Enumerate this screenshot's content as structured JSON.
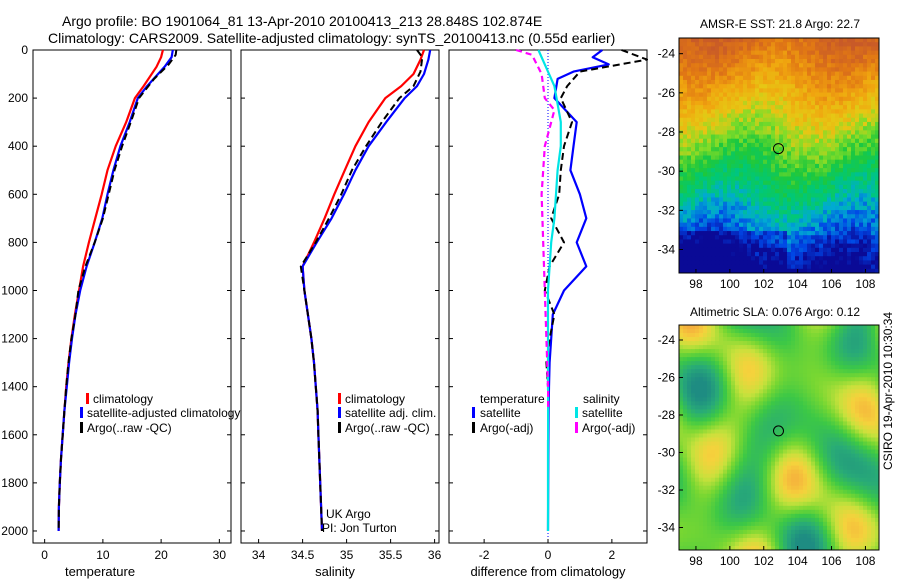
{
  "header": {
    "line1": "Argo profile: BO 1901064_81 13-Apr-2010 20100413_213 28.848S 102.874E",
    "line2": "Climatology: CARS2009. Satellite-adjusted climatology: synTS_20100413.nc (0.55d earlier)"
  },
  "side_label": "CSIRO 19-Apr-2010 10:30:34",
  "colors": {
    "climatology": "#ff0000",
    "satellite": "#0000ff",
    "argo": "#000000",
    "cyan": "#00e5e5",
    "magenta": "#ff00ff"
  },
  "chart_data": [
    {
      "id": "temperature",
      "type": "line",
      "xlabel": "temperature",
      "xlim": [
        -2,
        32
      ],
      "ylim": [
        0,
        2050
      ],
      "y_inverted": true,
      "xticks": [
        "0",
        "10",
        "20",
        "30"
      ],
      "yticks": [
        "0",
        "200",
        "400",
        "600",
        "800",
        "1000",
        "1200",
        "1400",
        "1600",
        "1800",
        "2000"
      ],
      "legend": [
        "climatology",
        "satellite-adjusted climatology",
        "Argo(..raw -QC)"
      ],
      "series": [
        {
          "name": "climatology",
          "color": "#ff0000",
          "width": 2.2,
          "points": [
            [
              20.3,
              0
            ],
            [
              20.0,
              30
            ],
            [
              19.2,
              70
            ],
            [
              17.0,
              150
            ],
            [
              15.5,
              200
            ],
            [
              14.0,
              300
            ],
            [
              12.2,
              400
            ],
            [
              10.8,
              500
            ],
            [
              9.8,
              600
            ],
            [
              8.7,
              700
            ],
            [
              7.6,
              800
            ],
            [
              6.6,
              900
            ],
            [
              5.9,
              1000
            ],
            [
              5.2,
              1100
            ],
            [
              4.6,
              1200
            ],
            [
              4.1,
              1300
            ],
            [
              3.7,
              1400
            ],
            [
              3.4,
              1500
            ],
            [
              3.1,
              1600
            ],
            [
              2.8,
              1700
            ],
            [
              2.6,
              1800
            ],
            [
              2.45,
              1900
            ],
            [
              2.4,
              2000
            ]
          ]
        },
        {
          "name": "satellite-adjusted climatology",
          "color": "#0000ff",
          "width": 2.2,
          "points": [
            [
              22.0,
              0
            ],
            [
              21.8,
              30
            ],
            [
              20.6,
              70
            ],
            [
              17.6,
              150
            ],
            [
              16.0,
              200
            ],
            [
              14.6,
              300
            ],
            [
              13.0,
              400
            ],
            [
              11.8,
              500
            ],
            [
              10.8,
              600
            ],
            [
              9.9,
              700
            ],
            [
              8.6,
              800
            ],
            [
              7.2,
              900
            ],
            [
              6.1,
              1000
            ],
            [
              5.3,
              1100
            ],
            [
              4.7,
              1200
            ],
            [
              4.2,
              1300
            ],
            [
              3.8,
              1400
            ],
            [
              3.4,
              1500
            ],
            [
              3.1,
              1600
            ],
            [
              2.8,
              1700
            ],
            [
              2.6,
              1800
            ],
            [
              2.45,
              1900
            ],
            [
              2.4,
              2000
            ]
          ]
        },
        {
          "name": "Argo(..raw -QC)",
          "color": "#000000",
          "width": 2.0,
          "dash": "7 4",
          "points": [
            [
              22.6,
              0
            ],
            [
              22.5,
              20
            ],
            [
              21.3,
              60
            ],
            [
              18.8,
              120
            ],
            [
              16.2,
              200
            ],
            [
              14.8,
              300
            ],
            [
              13.3,
              400
            ],
            [
              12.0,
              500
            ],
            [
              11.0,
              600
            ],
            [
              10.0,
              700
            ],
            [
              8.6,
              800
            ],
            [
              7.0,
              900
            ],
            [
              5.8,
              1000
            ],
            [
              5.3,
              1100
            ],
            [
              4.6,
              1200
            ],
            [
              4.1,
              1300
            ],
            [
              3.7,
              1400
            ],
            [
              3.4,
              1500
            ],
            [
              3.1,
              1600
            ],
            [
              2.8,
              1700
            ],
            [
              2.6,
              1800
            ],
            [
              2.45,
              1900
            ],
            [
              2.4,
              2000
            ]
          ]
        }
      ]
    },
    {
      "id": "salinity",
      "type": "line",
      "xlabel": "salinity",
      "xlim": [
        33.8,
        36.05
      ],
      "ylim": [
        0,
        2050
      ],
      "y_inverted": true,
      "xticks": [
        "34",
        "34.5",
        "35",
        "35.5",
        "36"
      ],
      "legend": [
        "climatology",
        "satellite adj. clim.",
        "Argo(..raw -QC)"
      ],
      "annotation": [
        "UK Argo",
        "PI: Jon Turton"
      ],
      "series": [
        {
          "name": "climatology",
          "color": "#ff0000",
          "width": 2.2,
          "points": [
            [
              35.88,
              0
            ],
            [
              35.84,
              40
            ],
            [
              35.76,
              100
            ],
            [
              35.62,
              150
            ],
            [
              35.44,
              200
            ],
            [
              35.25,
              300
            ],
            [
              35.1,
              400
            ],
            [
              34.98,
              500
            ],
            [
              34.86,
              600
            ],
            [
              34.75,
              700
            ],
            [
              34.63,
              800
            ],
            [
              34.5,
              900
            ],
            [
              34.52,
              1000
            ],
            [
              34.56,
              1100
            ],
            [
              34.6,
              1200
            ],
            [
              34.63,
              1300
            ],
            [
              34.65,
              1400
            ],
            [
              34.67,
              1500
            ],
            [
              34.68,
              1600
            ],
            [
              34.69,
              1700
            ],
            [
              34.7,
              1800
            ],
            [
              34.71,
              1900
            ],
            [
              34.72,
              2000
            ]
          ]
        },
        {
          "name": "satellite adj. clim.",
          "color": "#0000ff",
          "width": 2.2,
          "points": [
            [
              35.95,
              0
            ],
            [
              35.93,
              40
            ],
            [
              35.88,
              100
            ],
            [
              35.8,
              150
            ],
            [
              35.66,
              200
            ],
            [
              35.45,
              300
            ],
            [
              35.25,
              400
            ],
            [
              35.1,
              500
            ],
            [
              34.97,
              600
            ],
            [
              34.83,
              700
            ],
            [
              34.66,
              800
            ],
            [
              34.5,
              900
            ],
            [
              34.52,
              1000
            ],
            [
              34.56,
              1100
            ],
            [
              34.6,
              1200
            ],
            [
              34.63,
              1300
            ],
            [
              34.65,
              1400
            ],
            [
              34.67,
              1500
            ],
            [
              34.68,
              1600
            ],
            [
              34.69,
              1700
            ],
            [
              34.7,
              1800
            ],
            [
              34.71,
              1900
            ],
            [
              34.72,
              2000
            ]
          ]
        },
        {
          "name": "Argo(..raw -QC)",
          "color": "#000000",
          "width": 2.0,
          "dash": "7 4",
          "points": [
            [
              35.8,
              0
            ],
            [
              35.86,
              30
            ],
            [
              35.84,
              90
            ],
            [
              35.76,
              150
            ],
            [
              35.6,
              200
            ],
            [
              35.4,
              300
            ],
            [
              35.22,
              400
            ],
            [
              35.06,
              500
            ],
            [
              34.94,
              600
            ],
            [
              34.8,
              700
            ],
            [
              34.65,
              800
            ],
            [
              34.48,
              900
            ],
            [
              34.52,
              1000
            ],
            [
              34.56,
              1100
            ],
            [
              34.6,
              1200
            ],
            [
              34.63,
              1300
            ],
            [
              34.65,
              1400
            ],
            [
              34.67,
              1500
            ],
            [
              34.68,
              1600
            ],
            [
              34.69,
              1700
            ],
            [
              34.7,
              1800
            ],
            [
              34.71,
              1900
            ],
            [
              34.72,
              2000
            ]
          ]
        }
      ]
    },
    {
      "id": "difference",
      "type": "line",
      "xlabel": "difference from climatology",
      "xlim": [
        -3.1,
        3.1
      ],
      "ylim": [
        0,
        2050
      ],
      "y_inverted": true,
      "xticks": [
        "-2",
        "0",
        "2"
      ],
      "legend_temperature_title": "temperature",
      "legend_salinity_title": "salinity",
      "legend": [
        "satellite",
        "Argo(-adj)",
        "satellite",
        "Argo(-adj)"
      ],
      "series": [
        {
          "name": "temperature satellite",
          "color": "#0000ff",
          "width": 2.2,
          "points": [
            [
              1.7,
              0
            ],
            [
              1.4,
              30
            ],
            [
              1.9,
              60
            ],
            [
              0.8,
              90
            ],
            [
              0.3,
              120
            ],
            [
              0.2,
              200
            ],
            [
              0.9,
              300
            ],
            [
              0.8,
              400
            ],
            [
              0.7,
              500
            ],
            [
              1.0,
              600
            ],
            [
              1.2,
              700
            ],
            [
              0.9,
              800
            ],
            [
              1.2,
              900
            ],
            [
              0.5,
              1000
            ],
            [
              0.15,
              1100
            ],
            [
              0.1,
              1200
            ],
            [
              0.05,
              1300
            ],
            [
              0.03,
              1400
            ],
            [
              0.02,
              1500
            ],
            [
              0.01,
              1700
            ],
            [
              0.0,
              2000
            ]
          ]
        },
        {
          "name": "temperature Argo(-adj)",
          "color": "#000000",
          "width": 2.0,
          "dash": "7 4",
          "points": [
            [
              2.3,
              0
            ],
            [
              3.1,
              40
            ],
            [
              1.0,
              90
            ],
            [
              0.6,
              150
            ],
            [
              0.4,
              200
            ],
            [
              0.75,
              300
            ],
            [
              0.5,
              400
            ],
            [
              0.4,
              500
            ],
            [
              0.35,
              600
            ],
            [
              0.1,
              700
            ],
            [
              0.5,
              800
            ],
            [
              0.05,
              900
            ],
            [
              -0.1,
              1000
            ],
            [
              0.2,
              1100
            ],
            [
              0.05,
              1200
            ],
            [
              -0.05,
              1300
            ],
            [
              0.0,
              1400
            ],
            [
              0.0,
              2000
            ]
          ]
        },
        {
          "name": "salinity satellite",
          "color": "#00e5e5",
          "width": 2.2,
          "points": [
            [
              -0.3,
              0
            ],
            [
              -0.1,
              60
            ],
            [
              0.2,
              150
            ],
            [
              0.4,
              300
            ],
            [
              0.4,
              400
            ],
            [
              0.3,
              500
            ],
            [
              0.25,
              600
            ],
            [
              0.2,
              700
            ],
            [
              0.1,
              800
            ],
            [
              0.05,
              900
            ],
            [
              0.0,
              1000
            ],
            [
              0.0,
              2000
            ]
          ]
        },
        {
          "name": "salinity Argo(-adj)",
          "color": "#ff00ff",
          "width": 2.2,
          "dash": "6 4",
          "points": [
            [
              -1.0,
              0
            ],
            [
              -0.5,
              20
            ],
            [
              -0.2,
              100
            ],
            [
              -0.1,
              200
            ],
            [
              0.2,
              250
            ],
            [
              -0.1,
              400
            ],
            [
              -0.2,
              600
            ],
            [
              -0.15,
              800
            ],
            [
              -0.1,
              1000
            ],
            [
              -0.05,
              1200
            ],
            [
              0.0,
              1400
            ],
            [
              0.0,
              1500
            ]
          ]
        }
      ]
    },
    {
      "id": "sst_map",
      "type": "heatmap",
      "title": "AMSR-E SST: 21.8  Argo: 22.7",
      "xticks": [
        "98",
        "100",
        "102",
        "104",
        "106",
        "108"
      ],
      "yticks": [
        "-24",
        "-26",
        "-28",
        "-30",
        "-32",
        "-34"
      ],
      "xlim": [
        97,
        108.8
      ],
      "ylim": [
        -35.2,
        -23.2
      ],
      "marker": [
        102.87,
        -28.85
      ]
    },
    {
      "id": "sla_map",
      "type": "heatmap",
      "title": "Altimetric SLA: 0.076  Argo: 0.12",
      "xticks": [
        "98",
        "100",
        "102",
        "104",
        "106",
        "108"
      ],
      "yticks": [
        "-24",
        "-26",
        "-28",
        "-30",
        "-32",
        "-34"
      ],
      "xlim": [
        97,
        108.8
      ],
      "ylim": [
        -35.2,
        -23.2
      ],
      "marker": [
        102.87,
        -28.85
      ]
    }
  ]
}
